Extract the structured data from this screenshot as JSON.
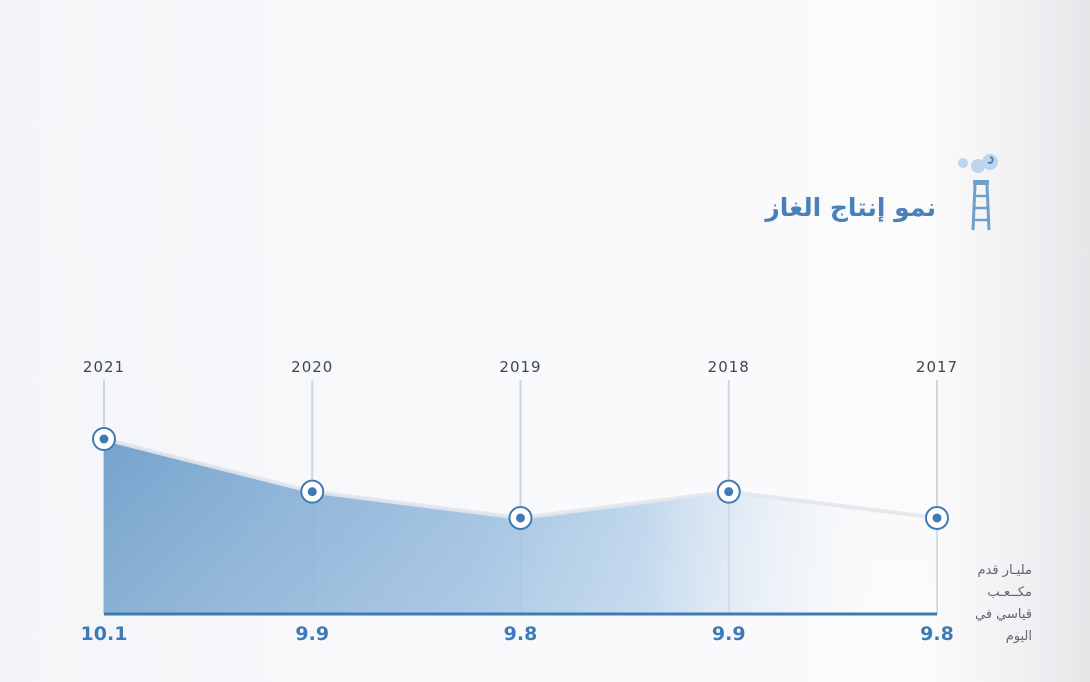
{
  "title": "نمو إنتاج الغاز",
  "unit_lines": [
    "مليـار قدم",
    "مكــعـب",
    "قياسي في",
    "اليوم"
  ],
  "icon": "gas-tower-icon",
  "colors": {
    "accent": "#4a7fb8",
    "area_dark": "#6f9fca",
    "area_light": "#a9c9e6",
    "point": "#3f7ab8",
    "baseline": "#3f7ab8",
    "gridline": "#cfd6df"
  },
  "chart_data": {
    "type": "area",
    "title": "نمو إنتاج الغاز",
    "x": [
      "2021",
      "2020",
      "2019",
      "2018",
      "2017"
    ],
    "series": [
      {
        "values": [
          10.1,
          9.9,
          9.8,
          9.9,
          9.8
        ]
      }
    ],
    "value_labels": [
      "10.1",
      "9.9",
      "9.8",
      "9.9",
      "9.8"
    ],
    "ylabel": "مليـار قدم مكــعـب قياسي في اليوم",
    "grid": "vertical",
    "legend": "none"
  }
}
